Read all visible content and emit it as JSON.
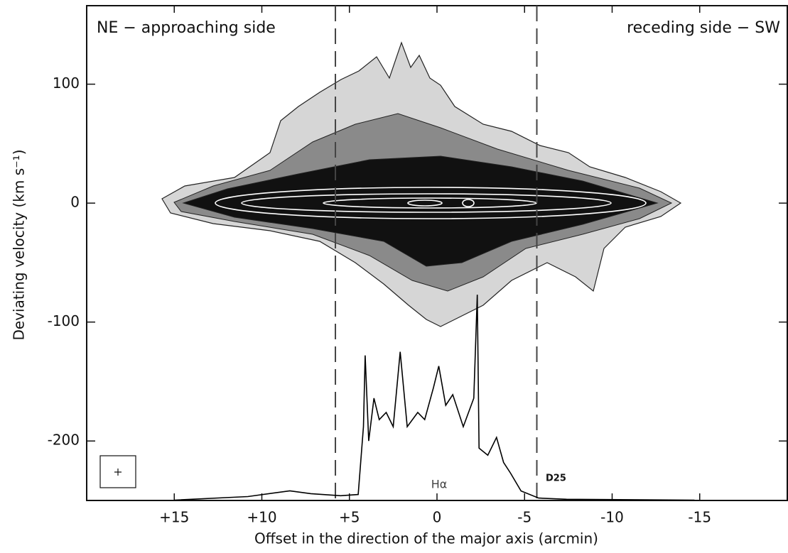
{
  "chart_data": {
    "type": "line",
    "xlabel": "Offset in the direction of the major axis (arcmin)",
    "ylabel": "Deviating velocity (km s⁻¹)",
    "xlim": [
      20,
      -20
    ],
    "ylim": [
      -250,
      166
    ],
    "xticks": [
      {
        "value": 15,
        "label": "+15"
      },
      {
        "value": 10,
        "label": "+10"
      },
      {
        "value": 5,
        "label": "+5"
      },
      0,
      -5,
      -10,
      -15
    ],
    "yticks": [
      100,
      0,
      -100,
      -200
    ],
    "vlines": [
      5.8,
      -5.7
    ],
    "annotations": [
      "NE − approaching side",
      "receding side − SW",
      "D25"
    ],
    "profile": {
      "label": "Hα",
      "color": "#000000",
      "x": [
        15.0,
        10.8,
        8.4,
        7.2,
        5.5,
        4.5,
        4.2,
        4.1,
        3.9,
        3.6,
        3.3,
        2.9,
        2.5,
        2.1,
        1.7,
        1.1,
        0.7,
        0.2,
        -0.1,
        -0.5,
        -0.9,
        -1.5,
        -2.1,
        -2.3,
        -2.4,
        -2.9,
        -3.4,
        -3.8,
        -4.2,
        -4.8,
        -5.8,
        -7.4,
        -14.7
      ],
      "values": [
        -249.7,
        -246.7,
        -241.9,
        -244.3,
        -246,
        -245,
        -188,
        -128,
        -200,
        -164,
        -182,
        -176,
        -188,
        -125,
        -188,
        -176,
        -182,
        -155,
        -137,
        -170,
        -161,
        -188,
        -164,
        -77,
        -206,
        -212,
        -197,
        -218,
        -227,
        -242,
        -248,
        -249,
        -249.7
      ]
    }
  }
}
